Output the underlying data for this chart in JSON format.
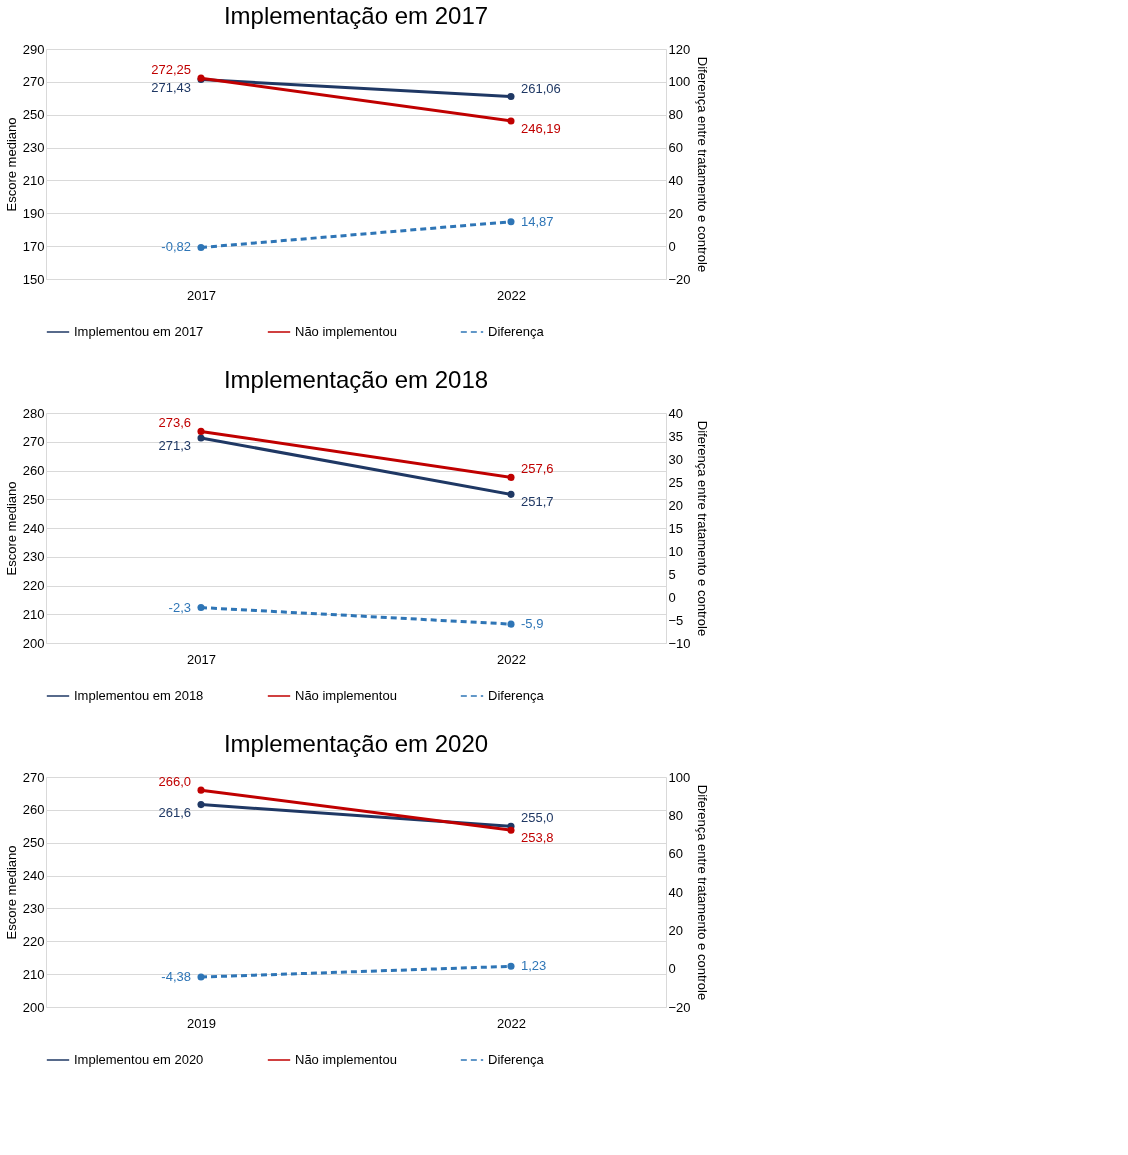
{
  "chart_data": [
    {
      "type": "line",
      "title": "Implementação em 2017",
      "categories": [
        "2017",
        "2022"
      ],
      "ylabel": "Escore mediano",
      "y2label": "Diferença entre tratamento e controle",
      "ylim": [
        150,
        290
      ],
      "yticks": [
        150,
        170,
        190,
        210,
        230,
        250,
        270,
        290
      ],
      "y2lim": [
        -20,
        120
      ],
      "y2ticks": [
        -20,
        0,
        20,
        40,
        60,
        80,
        100,
        120
      ],
      "grid": "y",
      "legend": "bottom",
      "marker": "circle",
      "series": [
        {
          "name": "Implementou em 2017",
          "color": "#1f3864",
          "values": [
            271.43,
            261.06
          ],
          "value_labels": [
            "271,43",
            "261,06"
          ]
        },
        {
          "name": "Não implementou",
          "color": "#c00000",
          "values": [
            272.25,
            246.19
          ],
          "value_labels": [
            "272,25",
            "246,19"
          ]
        },
        {
          "name": "Diferença",
          "color": "#2e75b6",
          "values": [
            -0.82,
            14.87
          ],
          "value_labels": [
            "-0,82",
            "14,87"
          ],
          "axis": "y2",
          "line_style": "dashed"
        }
      ]
    },
    {
      "type": "line",
      "title": "Implementação em 2018",
      "categories": [
        "2017",
        "2022"
      ],
      "ylabel": "Escore mediano",
      "y2label": "Diferença entre tratamento e controle",
      "ylim": [
        200,
        280
      ],
      "yticks": [
        200,
        210,
        220,
        230,
        240,
        250,
        260,
        270,
        280
      ],
      "y2lim": [
        -10,
        40
      ],
      "y2ticks": [
        -10,
        -5,
        0,
        5,
        10,
        15,
        20,
        25,
        30,
        35,
        40
      ],
      "grid": "y",
      "legend": "bottom",
      "marker": "circle",
      "series": [
        {
          "name": "Implementou em 2018",
          "color": "#1f3864",
          "values": [
            271.3,
            251.7
          ],
          "value_labels": [
            "271,3",
            "251,7"
          ]
        },
        {
          "name": "Não implementou",
          "color": "#c00000",
          "values": [
            273.6,
            257.6
          ],
          "value_labels": [
            "273,6",
            "257,6"
          ]
        },
        {
          "name": "Diferença",
          "color": "#2e75b6",
          "values": [
            -2.3,
            -5.9
          ],
          "value_labels": [
            "-2,3",
            "-5,9"
          ],
          "axis": "y2",
          "line_style": "dashed"
        }
      ]
    },
    {
      "type": "line",
      "title": "Implementação em 2020",
      "categories": [
        "2019",
        "2022"
      ],
      "ylabel": "Escore mediano",
      "y2label": "Diferença entre tratamento e controle",
      "ylim": [
        200,
        270
      ],
      "yticks": [
        200,
        210,
        220,
        230,
        240,
        250,
        260,
        270
      ],
      "y2lim": [
        -20,
        100
      ],
      "y2ticks": [
        -20,
        0,
        20,
        40,
        60,
        80,
        100
      ],
      "grid": "y",
      "legend": "bottom",
      "marker": "circle",
      "series": [
        {
          "name": "Implementou em 2020",
          "color": "#1f3864",
          "values": [
            261.6,
            255.0
          ],
          "value_labels": [
            "261,6",
            "255,0"
          ]
        },
        {
          "name": "Não implementou",
          "color": "#c00000",
          "values": [
            266.0,
            253.8
          ],
          "value_labels": [
            "266,0",
            "253,8"
          ]
        },
        {
          "name": "Diferença",
          "color": "#2e75b6",
          "values": [
            -4.38,
            1.23
          ],
          "value_labels": [
            "-4,38",
            "1,23"
          ],
          "axis": "y2",
          "line_style": "dashed"
        }
      ]
    }
  ]
}
